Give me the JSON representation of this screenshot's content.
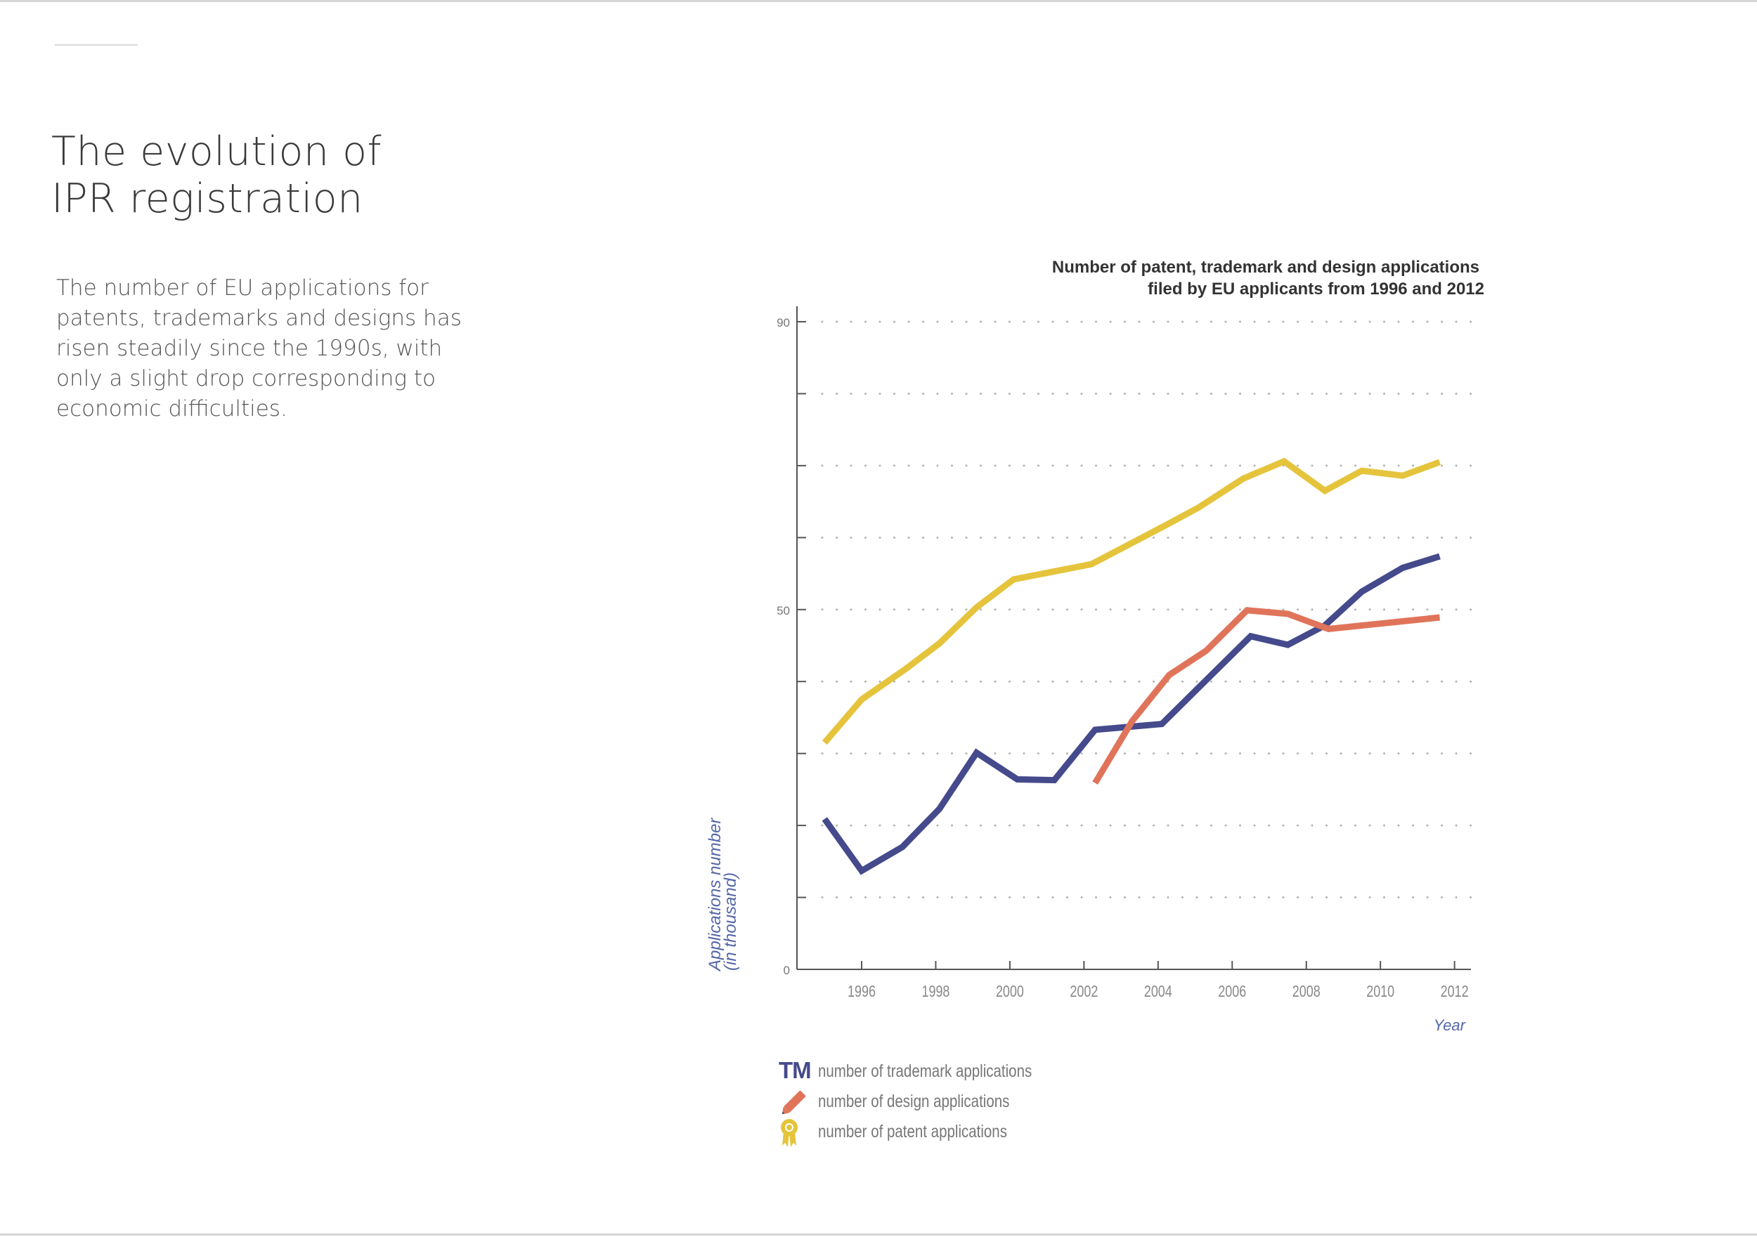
{
  "page": {
    "title_line1": "The evolution of",
    "title_line2": "IPR registration",
    "intro_lines": [
      "The number of EU applications for",
      "patents, trademarks and designs has",
      "risen steadily since the 1990s, with",
      "only a slight drop corresponding to",
      "economic difficulties."
    ]
  },
  "legend": {
    "trademark_icon_text": "TM",
    "trademark": "number of trademark applications",
    "design": "number of design applications",
    "patent": "number of patent applications"
  },
  "colors": {
    "trademark": "#444a8b",
    "design": "#e0745a",
    "patent": "#e5c43c",
    "ylabel": "#5566a8"
  },
  "chart_data": {
    "type": "line",
    "title": "Number of patent, trademark and design applications",
    "subtitle": "filed by EU applicants from 1996 and 2012",
    "xlabel": "Year",
    "ylabel": "Applications number",
    "ylabel_sub": "(in thousand)",
    "x_ticks": [
      1996,
      1998,
      2000,
      2002,
      2004,
      2006,
      2008,
      2010,
      2012
    ],
    "y_tick_labels": [
      0,
      50,
      90
    ],
    "y_minor_ticks": [
      10,
      20,
      30,
      40,
      50,
      60,
      70,
      80,
      90
    ],
    "xlim": [
      1994.9,
      2012.5
    ],
    "ylim": [
      0,
      90
    ],
    "legend_position": "bottom-left",
    "series": [
      {
        "key": "patent",
        "name": "number of patent applications",
        "x": [
          1995.0,
          1996.0,
          1997.2,
          1998.1,
          1999.1,
          2000.1,
          2002.2,
          2004.2,
          2005.1,
          2006.3,
          2007.4,
          2008.5,
          2009.5,
          2010.6,
          2011.6
        ],
        "y": [
          31.5,
          37.5,
          41.8,
          45.3,
          50.3,
          54.2,
          56.3,
          61.7,
          64.2,
          68.2,
          70.6,
          66.5,
          69.3,
          68.6,
          70.5
        ]
      },
      {
        "key": "trademark",
        "name": "number of trademark applications",
        "x": [
          1995.0,
          1996.0,
          1997.1,
          1998.1,
          1999.1,
          2000.2,
          2001.2,
          2002.3,
          2004.1,
          2005.2,
          2006.5,
          2007.5,
          2008.5,
          2009.5,
          2010.6,
          2011.6
        ],
        "y": [
          20.9,
          13.7,
          17.0,
          22.3,
          30.1,
          26.4,
          26.3,
          33.3,
          34.1,
          39.7,
          46.3,
          45.1,
          47.8,
          52.5,
          55.8,
          57.4
        ]
      },
      {
        "key": "design",
        "name": "number of design applications",
        "x": [
          2002.3,
          2003.3,
          2004.3,
          2005.3,
          2006.4,
          2007.5,
          2008.6,
          2011.6
        ],
        "y": [
          25.9,
          34.5,
          40.9,
          44.3,
          49.9,
          49.4,
          47.3,
          48.9
        ]
      }
    ]
  }
}
